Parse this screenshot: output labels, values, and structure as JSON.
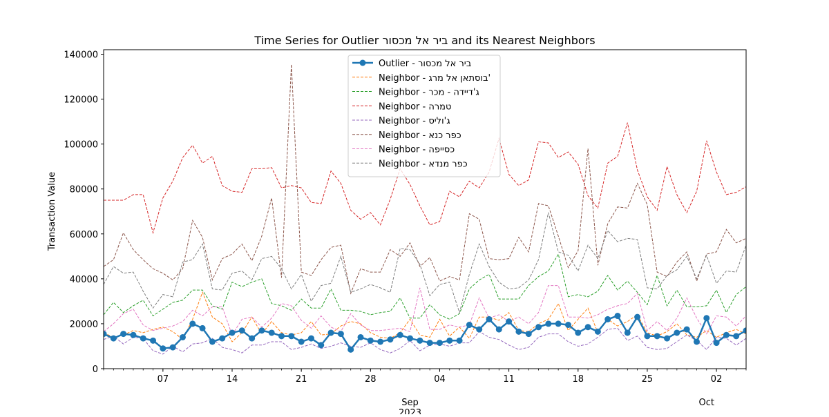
{
  "chart_data": {
    "type": "line",
    "title": "Time Series for Outlier ביר אל מכסור and its Nearest Neighbors",
    "xlabel": "",
    "ylabel": "Transaction Value",
    "xlim": [
      "2023-08-01",
      "2023-10-05"
    ],
    "ylim": [
      0,
      142000
    ],
    "y_ticks": [
      0,
      20000,
      40000,
      60000,
      80000,
      100000,
      120000,
      140000
    ],
    "x_ticks": [
      {
        "date": "2023-08-07",
        "label": "07"
      },
      {
        "date": "2023-08-14",
        "label": "14"
      },
      {
        "date": "2023-08-21",
        "label": "21"
      },
      {
        "date": "2023-08-28",
        "label": "28"
      },
      {
        "date": "2023-09-04",
        "label": "04"
      },
      {
        "date": "2023-09-11",
        "label": "11"
      },
      {
        "date": "2023-09-18",
        "label": "18"
      },
      {
        "date": "2023-09-25",
        "label": "25"
      },
      {
        "date": "2023-10-02",
        "label": "02"
      }
    ],
    "x_major_labels": [
      {
        "date": "2023-09-01",
        "label": "Sep",
        "sublabel": "2023"
      },
      {
        "date": "2023-10-01",
        "label": "Oct",
        "sublabel": ""
      }
    ],
    "grid": false,
    "legend_position": "top-center",
    "x_start": "2023-08-01",
    "x_step": "1 day",
    "series": [
      {
        "name": "Outlier - ביר אל מכסור",
        "color": "#1f77b4",
        "style": "solid-marker",
        "values": [
          15500,
          13500,
          15500,
          15000,
          13500,
          12500,
          9000,
          9500,
          14000,
          20000,
          18000,
          12000,
          13500,
          16000,
          17000,
          13500,
          17000,
          16000,
          14500,
          14500,
          12000,
          13500,
          10500,
          16000,
          15500,
          8500,
          14000,
          12500,
          12000,
          13000,
          15000,
          13500,
          12500,
          11500,
          11500,
          12500,
          12500,
          19500,
          17500,
          22000,
          17500,
          21000,
          16500,
          15500,
          18500,
          20000,
          20000,
          19500,
          16000,
          18500,
          16500,
          22000,
          23500,
          16000,
          23000,
          14500,
          14500,
          13500,
          16000,
          17500,
          12000,
          22500,
          11500,
          15000,
          14500,
          17000
        ]
      },
      {
        "name": "Neighbor - בוסתאן אל מרג'",
        "color": "#ff7f0e",
        "style": "dashed",
        "values": [
          16000,
          14000,
          15000,
          17000,
          16000,
          17500,
          18500,
          16500,
          13000,
          22000,
          34000,
          23000,
          20000,
          12000,
          16000,
          23000,
          15500,
          21000,
          16000,
          15000,
          16000,
          21000,
          15000,
          15500,
          19000,
          21000,
          20000,
          16000,
          14000,
          13500,
          16000,
          22000,
          15000,
          14000,
          22000,
          14500,
          18500,
          13500,
          23000,
          23000,
          21500,
          25000,
          17000,
          16500,
          20000,
          22000,
          29000,
          17000,
          22000,
          27000,
          16000,
          22000,
          19000,
          21000,
          24000,
          16000,
          14500,
          16500,
          20000,
          15000,
          14000,
          17000,
          14000,
          16000,
          17500,
          15500
        ]
      },
      {
        "name": "Neighbor - ג'דיידה - מכר",
        "color": "#2ca02c",
        "style": "dashed",
        "values": [
          24000,
          29500,
          25000,
          28000,
          30500,
          23500,
          26500,
          29500,
          30500,
          35000,
          35000,
          28000,
          26500,
          38500,
          36500,
          38500,
          40000,
          29000,
          28000,
          26000,
          31000,
          27000,
          27000,
          35500,
          26000,
          26000,
          25500,
          24000,
          25000,
          25500,
          31500,
          22500,
          22500,
          28500,
          24000,
          22000,
          24500,
          35500,
          39500,
          42000,
          31000,
          31000,
          31000,
          37000,
          41000,
          43500,
          51000,
          32000,
          33000,
          32000,
          34500,
          41500,
          35000,
          39000,
          34000,
          28500,
          41500,
          28000,
          35000,
          27500,
          27500,
          28000,
          35000,
          25000,
          33000,
          36500
        ]
      },
      {
        "name": "Neighbor - טמרה",
        "color": "#d62728",
        "style": "dashed",
        "values": [
          75000,
          75000,
          75000,
          77500,
          77500,
          60500,
          76000,
          83500,
          94000,
          99500,
          91500,
          94500,
          81500,
          79000,
          78500,
          89000,
          89000,
          89500,
          80500,
          81500,
          80500,
          74000,
          73500,
          88000,
          82500,
          70500,
          66500,
          69500,
          64000,
          75500,
          89000,
          82000,
          72500,
          64000,
          65500,
          79000,
          76500,
          83500,
          80500,
          87500,
          102500,
          86500,
          81500,
          84000,
          101000,
          100500,
          94000,
          96500,
          91000,
          77000,
          71500,
          91500,
          94500,
          109500,
          88500,
          76500,
          70500,
          90000,
          77500,
          69500,
          79000,
          101500,
          87500,
          77500,
          78500,
          81000
        ]
      },
      {
        "name": "Neighbor - ג'וליס",
        "color": "#9467bd",
        "style": "dashed",
        "values": [
          13000,
          14500,
          11000,
          14000,
          13500,
          8000,
          6500,
          10000,
          7500,
          11000,
          11500,
          13500,
          9500,
          8500,
          7000,
          10500,
          10500,
          12000,
          12000,
          8500,
          9500,
          11000,
          9000,
          10000,
          11500,
          10000,
          9500,
          11500,
          8500,
          7000,
          9000,
          12500,
          8000,
          10500,
          11000,
          10000,
          11500,
          11500,
          16500,
          14000,
          13000,
          10500,
          8500,
          9500,
          14000,
          15500,
          15500,
          12000,
          10000,
          11000,
          14000,
          17500,
          18000,
          12500,
          14500,
          9500,
          8500,
          9000,
          12000,
          15000,
          12500,
          8500,
          14000,
          13500,
          10500,
          13500
        ]
      },
      {
        "name": "Neighbor - כפר כנא",
        "color": "#8c564b",
        "style": "dashed",
        "values": [
          45500,
          48500,
          60500,
          53000,
          48500,
          44500,
          42500,
          39500,
          44500,
          66000,
          58500,
          39500,
          49000,
          51000,
          55500,
          48000,
          59000,
          76000,
          40500,
          135500,
          43000,
          41500,
          48500,
          54000,
          55000,
          33500,
          44500,
          43000,
          43000,
          53000,
          50000,
          56000,
          45500,
          49500,
          39000,
          41000,
          39500,
          69000,
          66500,
          49000,
          48500,
          49000,
          58500,
          52000,
          73500,
          72500,
          59000,
          45000,
          52500,
          98000,
          46000,
          64500,
          72000,
          71500,
          82500,
          73000,
          43000,
          41000,
          47500,
          52000,
          39000,
          51000,
          52000,
          62000,
          56000,
          58000
        ]
      },
      {
        "name": "Neighbor - כסייפה",
        "color": "#e377c2",
        "style": "dashed",
        "values": [
          16500,
          20000,
          24500,
          26500,
          19500,
          17000,
          18000,
          19000,
          21000,
          26000,
          23500,
          27500,
          27500,
          15000,
          22000,
          23000,
          18500,
          22500,
          29000,
          28000,
          21500,
          18000,
          23500,
          18500,
          16500,
          24500,
          19500,
          17000,
          17000,
          17500,
          18000,
          16500,
          36000,
          17500,
          17500,
          19500,
          18500,
          19500,
          31500,
          22500,
          24000,
          21000,
          23000,
          20000,
          25000,
          37000,
          37000,
          23000,
          23000,
          22500,
          24000,
          26500,
          28000,
          29000,
          33500,
          17000,
          21000,
          17000,
          22500,
          31500,
          22500,
          15500,
          23500,
          23000,
          19000,
          23500
        ]
      },
      {
        "name": "Neighbor - כפר מנדא",
        "color": "#7f7f7f",
        "style": "dashed",
        "values": [
          37500,
          45500,
          42500,
          43000,
          34500,
          27000,
          33000,
          32000,
          47500,
          48500,
          55500,
          35500,
          35000,
          42500,
          43500,
          39500,
          49000,
          50000,
          44500,
          35500,
          42000,
          30000,
          37000,
          38000,
          50000,
          34000,
          35500,
          37500,
          36000,
          34000,
          53500,
          53000,
          46500,
          32500,
          37500,
          38500,
          25000,
          42000,
          55500,
          45500,
          38500,
          35500,
          36000,
          39500,
          48500,
          69500,
          52000,
          50500,
          43500,
          55000,
          49000,
          61500,
          56500,
          58000,
          57500,
          36000,
          35500,
          41500,
          44000,
          50000,
          40000,
          50500,
          38000,
          43500,
          43000,
          55000
        ]
      }
    ]
  }
}
